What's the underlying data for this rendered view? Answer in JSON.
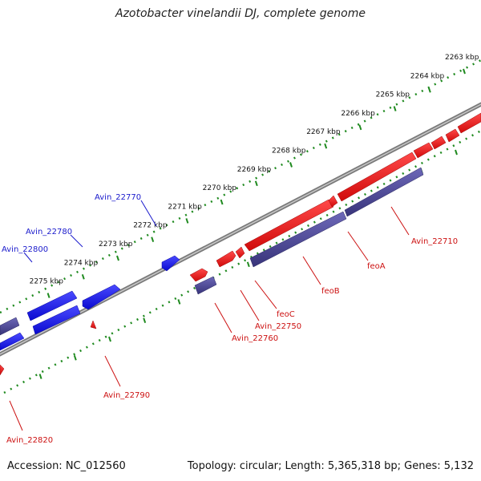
{
  "title": "Azotobacter vinelandii DJ, complete genome",
  "footer": {
    "accession": "Accession: NC_012560",
    "topology": "Topology: circular; Length: 5,365,318 bp; Genes: 5,132"
  },
  "ruler": {
    "tick_labels": [
      "2263 kbp",
      "2264 kbp",
      "2265 kbp",
      "2266 kbp",
      "2267 kbp",
      "2268 kbp",
      "2269 kbp",
      "2270 kbp",
      "2271 kbp",
      "2272 kbp",
      "2273 kbp",
      "2274 kbp",
      "2275 kbp"
    ]
  },
  "gene_labels": {
    "forward": [
      "Avin_22770",
      "Avin_22780",
      "Avin_22800"
    ],
    "reverse": [
      "Avin_22710",
      "feoA",
      "feoB",
      "feoC",
      "Avin_22750",
      "Avin_22760",
      "Avin_22790",
      "Avin_22820"
    ]
  },
  "colors": {
    "forward_gene": "#1a1aee",
    "reverse_gene": "#ee1111",
    "rna_or_other": "#4a4590",
    "backbone": "#8a8a8a",
    "ruler": "#1f8a1f",
    "forward_label": "#1a1acc",
    "reverse_label": "#cc1111"
  }
}
